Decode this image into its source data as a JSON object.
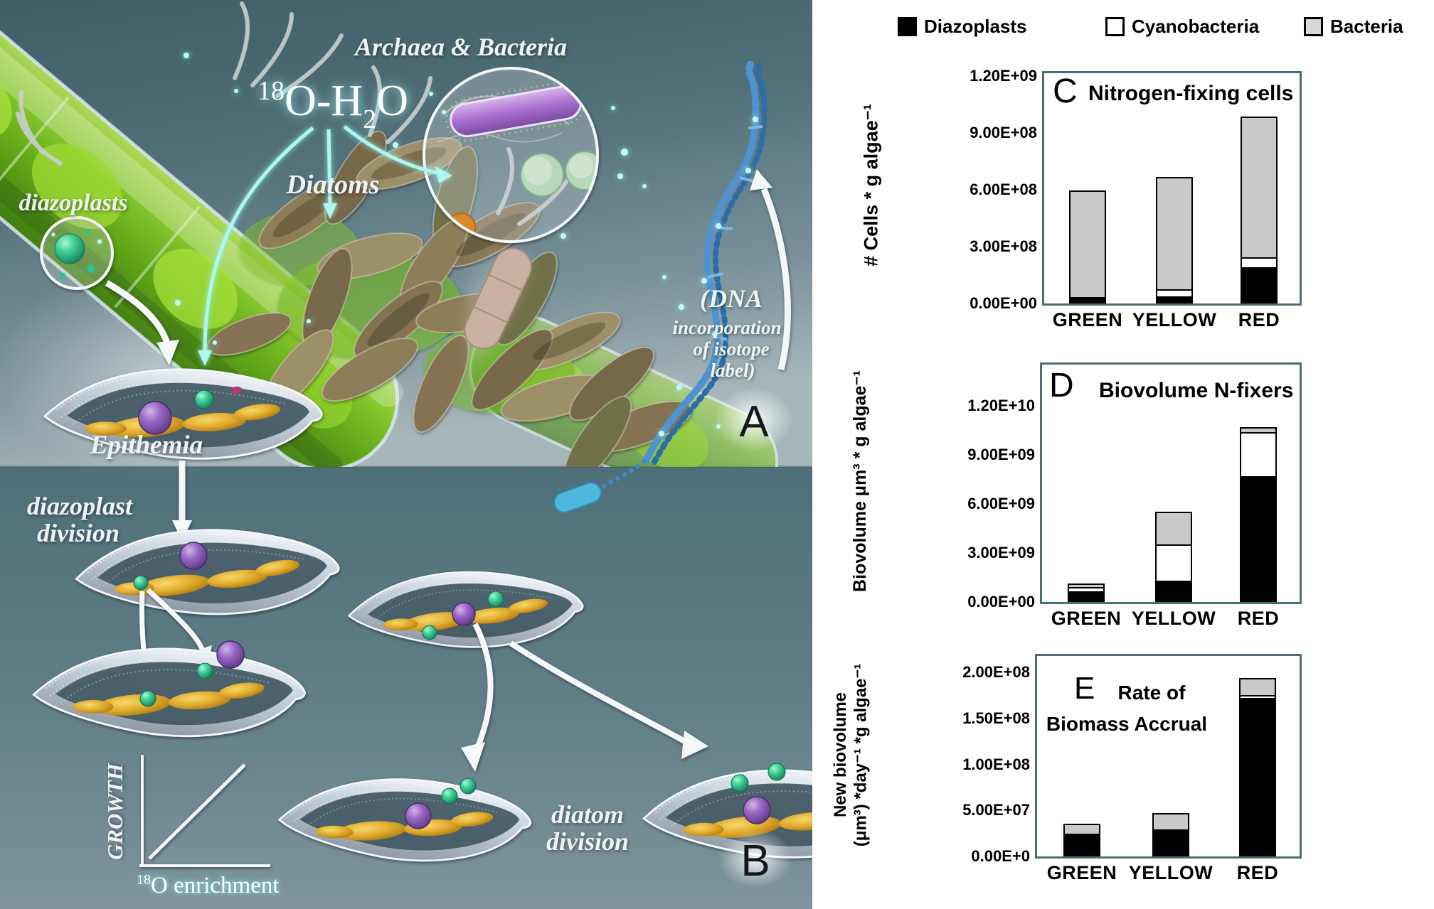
{
  "legend": {
    "items": [
      {
        "label": "Diazoplasts",
        "color": "#000000"
      },
      {
        "label": "Cyanobacteria",
        "color": "#ffffff"
      },
      {
        "label": "Bacteria",
        "color": "#d8d8d8"
      }
    ]
  },
  "illustration": {
    "panel_a_letter": "A",
    "panel_b_letter": "B",
    "isotope": {
      "sup": "18",
      "mid": "O-H",
      "sub": "2",
      "end": "O"
    },
    "archaea_bacteria_label": "Archaea & Bacteria",
    "diazoplasts_label": "diazoplasts",
    "diatoms_label": "Diatoms",
    "epithemia_label": "Epithemia",
    "dna_note": {
      "line1": "(DNA",
      "line2": "incorporation",
      "line3": "of isotope",
      "line4": "label)"
    },
    "diazoplast_division": {
      "line1": "diazoplast",
      "line2": "division"
    },
    "diatom_division": {
      "line1": "diatom",
      "line2": "division"
    },
    "growth_inset": {
      "y_axis_label": "GROWTH",
      "x_axis_sup": "18",
      "x_axis_label": "O enrichment"
    }
  },
  "chart_data": [
    {
      "panel_letter": "C",
      "type": "bar",
      "stacked": true,
      "title": "Nitrogen-fixing cells",
      "ylabel": "# Cells * g algae⁻¹",
      "categories": [
        "GREEN",
        "YELLOW",
        "RED"
      ],
      "series": [
        {
          "name": "Diazoplasts",
          "color": "#000000",
          "values": [
            30000000.0,
            38000000.0,
            190000000.0
          ]
        },
        {
          "name": "Cyanobacteria",
          "color": "#ffffff",
          "values": [
            8000000.0,
            45000000.0,
            60000000.0
          ]
        },
        {
          "name": "Bacteria",
          "color": "#c9c9c9",
          "values": [
            570000000.0,
            600000000.0,
            750000000.0
          ]
        }
      ],
      "ylim": [
        0,
        1200000000.0
      ],
      "yticks": [
        {
          "label": "1.20E+09",
          "value": 1200000000.0
        },
        {
          "label": "9.00E+08",
          "value": 900000000.0
        },
        {
          "label": "6.00E+08",
          "value": 600000000.0
        },
        {
          "label": "3.00E+08",
          "value": 300000000.0
        },
        {
          "label": "0.00E+00",
          "value": 0
        }
      ],
      "grid": false,
      "legend_position": "top"
    },
    {
      "panel_letter": "D",
      "type": "bar",
      "stacked": true,
      "title": "Biovolume N-fixers",
      "ylabel": "Biovolume μm³ * g algae⁻¹",
      "categories": [
        "GREEN",
        "YELLOW",
        "RED"
      ],
      "series": [
        {
          "name": "Diazoplasts",
          "color": "#000000",
          "values": [
            650000000.0,
            1300000000.0,
            7700000000.0
          ]
        },
        {
          "name": "Cyanobacteria",
          "color": "#ffffff",
          "values": [
            350000000.0,
            2300000000.0,
            2800000000.0
          ]
        },
        {
          "name": "Bacteria",
          "color": "#c9c9c9",
          "values": [
            300000000.0,
            2100000000.0,
            400000000.0
          ]
        }
      ],
      "ylim": [
        0,
        12000000000.0
      ],
      "yticks": [
        {
          "label": "1.20E+10",
          "value": 12000000000.0
        },
        {
          "label": "9.00E+09",
          "value": 9000000000.0
        },
        {
          "label": "6.00E+09",
          "value": 6000000000.0
        },
        {
          "label": "3.00E+09",
          "value": 3000000000.0
        },
        {
          "label": "0.00E+00",
          "value": 0
        }
      ],
      "grid": false,
      "legend_position": "top"
    },
    {
      "panel_letter": "E",
      "type": "bar",
      "stacked": true,
      "title": "Rate of Biomass Accrual",
      "title_line1": "Rate of",
      "title_line2": "Biomass Accrual",
      "ylabel": "New biovolume (μm³) *day⁻¹ *g algae⁻¹",
      "ylabel_line1": "New biovolume",
      "ylabel_line2": "(μm³) *day⁻¹ *g algae⁻¹",
      "categories": [
        "GREEN",
        "YELLOW",
        "RED"
      ],
      "series": [
        {
          "name": "Diazoplasts",
          "color": "#000000",
          "values": [
            25000000.0,
            29000000.0,
            172000000.0
          ]
        },
        {
          "name": "Cyanobacteria",
          "color": "#ffffff",
          "values": [
            0,
            0,
            5000000.0
          ]
        },
        {
          "name": "Bacteria",
          "color": "#c9c9c9",
          "values": [
            12000000.0,
            19000000.0,
            20000000.0
          ]
        }
      ],
      "ylim": [
        0,
        200000000.0
      ],
      "yticks": [
        {
          "label": "2.00E+08",
          "value": 200000000.0
        },
        {
          "label": "1.50E+08",
          "value": 150000000.0
        },
        {
          "label": "1.00E+08",
          "value": 100000000.0
        },
        {
          "label": "5.00E+07",
          "value": 50000000.0
        },
        {
          "label": "0.00E+0",
          "value": 0
        }
      ],
      "grid": false,
      "legend_position": "top"
    }
  ]
}
